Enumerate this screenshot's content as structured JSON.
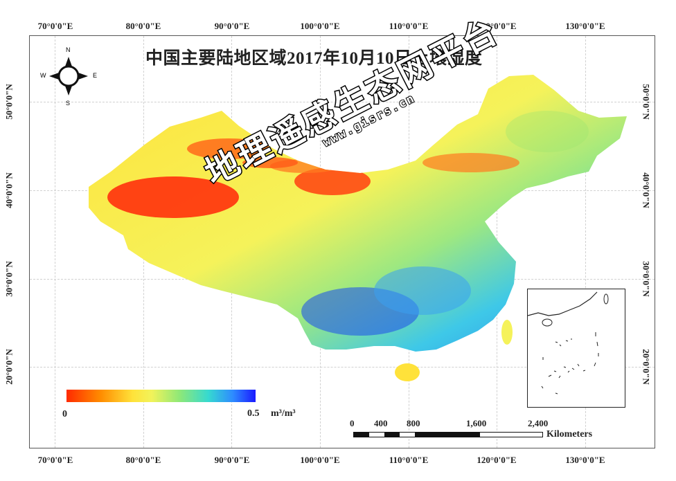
{
  "title": "中国主要陆地区域2017年10月10日土壤湿度",
  "longitude_labels": [
    "70°0'0\"E",
    "80°0'0\"E",
    "90°0'0\"E",
    "100°0'0\"E",
    "110°0'0\"E",
    "120°0'0\"E",
    "130°0'0\"E"
  ],
  "latitude_labels": [
    "50°0'0\"N",
    "40°0'0\"N",
    "30°0'0\"N",
    "20°0'0\"N"
  ],
  "north_arrow": {
    "n": "N",
    "s": "S",
    "e": "E",
    "w": "W",
    "icon": "compass-rose-icon"
  },
  "legend": {
    "min_label": "0",
    "max_label": "0.5",
    "unit": "m³/m³",
    "colors": [
      "#ff2a00",
      "#ff8c00",
      "#ffe23a",
      "#f2f35a",
      "#8de878",
      "#36d9d0",
      "#2e8bff",
      "#1a1aff"
    ]
  },
  "scale_bar": {
    "ticks": [
      "0",
      "400",
      "800",
      "1,600",
      "2,400"
    ],
    "unit": "Kilometers"
  },
  "watermark": {
    "main": "地理遥感生态网平台",
    "url": "www.gisrs.cn"
  },
  "inset": {
    "icon": "south-china-sea-inset-map"
  }
}
